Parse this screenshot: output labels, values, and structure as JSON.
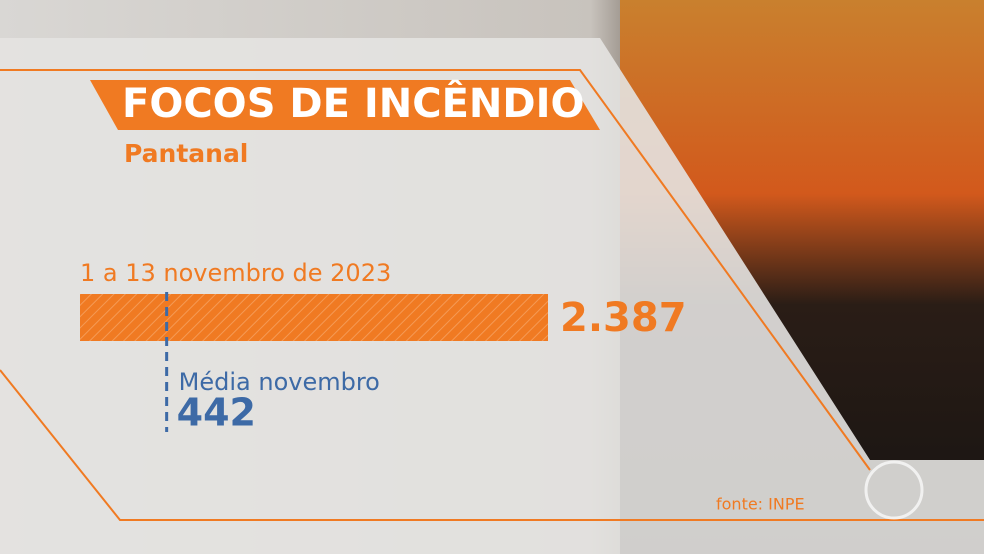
{
  "chart_data": {
    "type": "bar",
    "orientation": "horizontal",
    "title": "FOCOS DE INCÊNDIO",
    "subtitle": "Pantanal",
    "categories": [
      "1 a 13 novembro de 2023"
    ],
    "values": [
      2387
    ],
    "value_labels": [
      "2.387"
    ],
    "color": "#f07a22",
    "reference": {
      "label": "Média novembro",
      "value": 442,
      "color": "#3d6aa6"
    },
    "source": "fonte: INPE"
  }
}
